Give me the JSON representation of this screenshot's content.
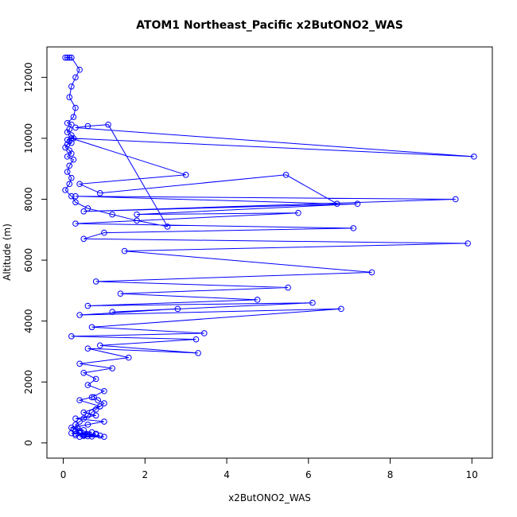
{
  "chart_data": {
    "type": "line",
    "title": "ATOM1 Northeast_Pacific x2ButONO2_WAS",
    "xlabel": "x2ButONO2_WAS",
    "ylabel": "Altitude (m)",
    "xlim": [
      -0.4,
      10.5
    ],
    "ylim": [
      -500,
      13000
    ],
    "xticks": [
      0,
      2,
      4,
      6,
      8,
      10
    ],
    "yticks": [
      0,
      2000,
      4000,
      6000,
      8000,
      10000,
      12000
    ],
    "xtick_labels": [
      "0",
      "2",
      "4",
      "6",
      "8",
      "10"
    ],
    "ytick_labels": [
      "0",
      "2000",
      "4000",
      "6000",
      "8000",
      "10000",
      "12000"
    ],
    "grid": false,
    "color": "#0000ff",
    "series": [
      {
        "marker": "open-circle",
        "x": [
          0.05,
          0.1,
          0.15,
          0.2,
          0.4,
          0.3,
          0.2,
          0.15,
          0.3,
          0.25,
          0.1,
          0.2,
          0.15,
          0.1,
          0.2,
          0.25,
          0.1,
          0.15,
          0.2,
          0.1,
          0.05,
          0.15,
          0.2,
          0.1,
          0.25,
          0.15,
          0.1,
          0.2,
          0.15,
          0.05,
          0.2,
          0.3,
          0.6,
          1.2,
          1.8,
          2.55,
          1.1,
          0.6,
          0.3,
          10.05,
          0.2,
          3.0,
          0.4,
          0.9,
          5.45,
          6.7,
          0.3,
          9.6,
          0.5,
          7.2,
          1.8,
          5.75,
          0.3,
          7.1,
          1.0,
          0.5,
          9.9,
          1.5,
          7.55,
          0.8,
          5.5,
          1.4,
          4.75,
          0.6,
          6.1,
          1.2,
          2.8,
          0.4,
          6.8,
          0.7,
          3.45,
          0.2,
          3.25,
          0.9,
          3.3,
          0.6,
          1.6,
          0.4,
          1.2,
          0.5,
          0.8,
          0.6,
          1.0,
          0.7,
          0.4,
          0.9,
          0.5,
          0.8,
          0.3,
          1.0,
          0.6,
          0.2,
          0.4,
          0.7,
          0.3,
          0.8,
          0.5,
          0.9,
          0.6,
          1.0,
          0.4,
          0.7,
          0.5,
          0.3,
          0.6,
          0.8,
          0.2,
          0.4,
          0.3,
          0.5,
          0.25,
          0.35,
          0.3,
          0.4,
          0.5,
          0.6,
          0.7,
          0.8,
          0.9,
          1.0,
          0.85,
          0.75
        ],
        "y": [
          12650,
          12650,
          12650,
          12650,
          12250,
          12000,
          11700,
          11350,
          11000,
          10700,
          10500,
          10450,
          10300,
          10200,
          10100,
          10000,
          9950,
          9900,
          9850,
          9800,
          9700,
          9600,
          9500,
          9400,
          9300,
          9100,
          8900,
          8700,
          8500,
          8300,
          8100,
          7900,
          7700,
          7500,
          7300,
          7100,
          10450,
          10400,
          10350,
          9400,
          10000,
          8800,
          8500,
          8200,
          8800,
          7850,
          8100,
          8000,
          7600,
          7850,
          7500,
          7550,
          7200,
          7050,
          6900,
          6700,
          6550,
          6300,
          5600,
          5300,
          5100,
          4900,
          4700,
          4500,
          4600,
          4300,
          4400,
          4200,
          4400,
          3800,
          3600,
          3500,
          3400,
          3200,
          2950,
          3100,
          2800,
          2600,
          2450,
          2300,
          2100,
          1900,
          1700,
          1500,
          1400,
          1200,
          1000,
          900,
          800,
          700,
          600,
          500,
          400,
          350,
          300,
          280,
          260,
          240,
          220,
          200,
          200,
          210,
          230,
          250,
          280,
          300,
          320,
          350,
          380,
          420,
          450,
          500,
          600,
          700,
          800,
          900,
          1000,
          1100,
          1200,
          1300,
          1400,
          1500
        ]
      }
    ]
  }
}
